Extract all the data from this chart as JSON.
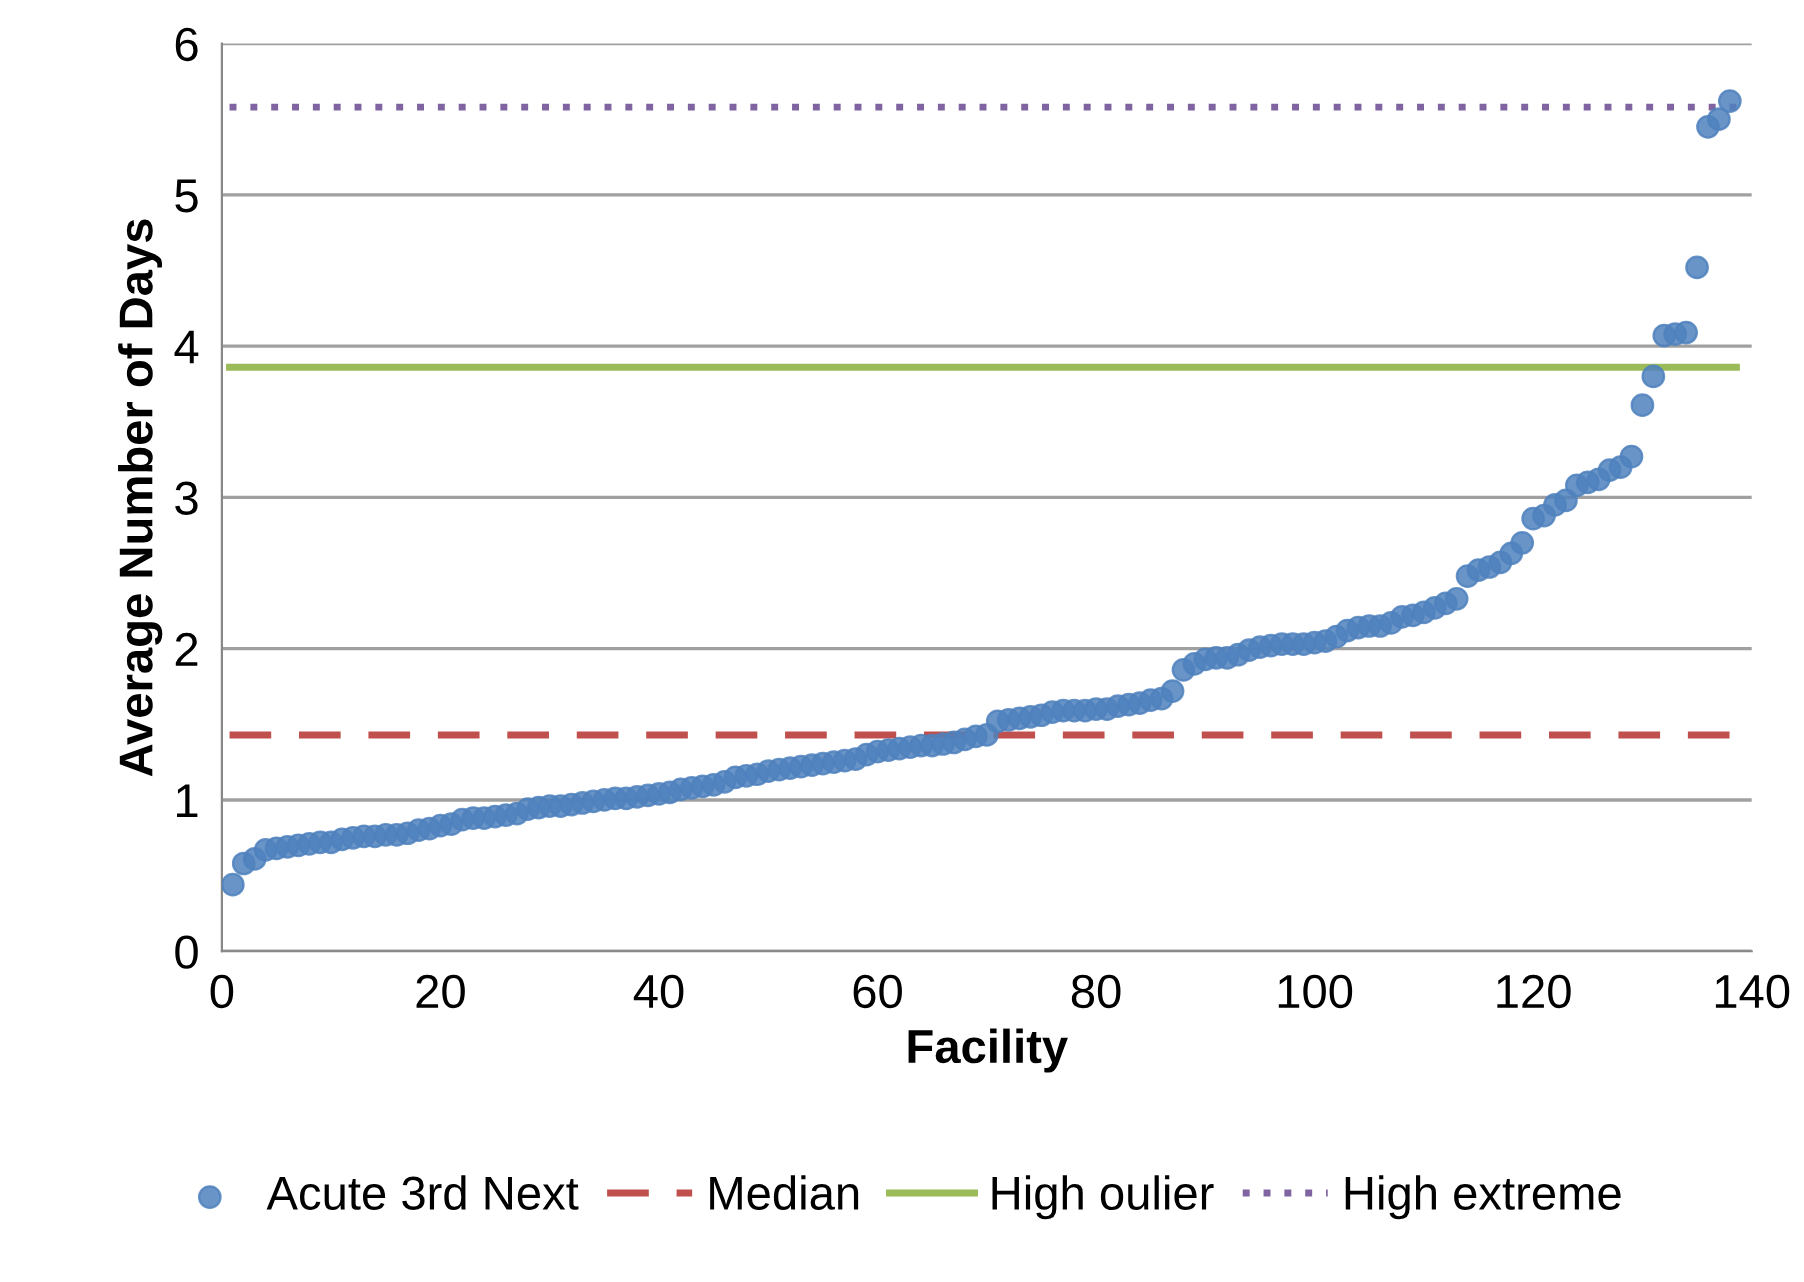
{
  "chart_data": {
    "type": "scatter",
    "xlabel": "Facility",
    "ylabel": "Average Number of Days",
    "xlim": [
      0,
      140
    ],
    "xticks": [
      0,
      20,
      40,
      60,
      80,
      100,
      120,
      140
    ],
    "ylim": [
      0,
      6
    ],
    "yticks": [
      0,
      1,
      2,
      3,
      4,
      5,
      6
    ],
    "grid": "y",
    "legend": "bottom",
    "x": [
      1,
      2,
      3,
      4,
      5,
      6,
      7,
      8,
      9,
      10,
      11,
      12,
      13,
      14,
      15,
      16,
      17,
      18,
      19,
      20,
      21,
      22,
      23,
      24,
      25,
      26,
      27,
      28,
      29,
      30,
      31,
      32,
      33,
      34,
      35,
      36,
      37,
      38,
      39,
      40,
      41,
      42,
      43,
      44,
      45,
      46,
      47,
      48,
      49,
      50,
      51,
      52,
      53,
      54,
      55,
      56,
      57,
      58,
      59,
      60,
      61,
      62,
      63,
      64,
      65,
      66,
      67,
      68,
      69,
      70,
      71,
      72,
      73,
      74,
      75,
      76,
      77,
      78,
      79,
      80,
      81,
      82,
      83,
      84,
      85,
      86,
      87,
      88,
      89,
      90,
      91,
      92,
      93,
      94,
      95,
      96,
      97,
      98,
      99,
      100,
      101,
      102,
      103,
      104,
      105,
      106,
      107,
      108,
      109,
      110,
      111,
      112,
      113,
      114,
      115,
      116,
      117,
      118,
      119,
      120,
      121,
      122,
      123,
      124,
      125,
      126,
      127,
      128,
      129,
      130,
      131,
      132,
      133,
      134,
      135,
      136,
      137,
      138
    ],
    "series": [
      {
        "name": "Acute 3rd Next",
        "marker": "circle",
        "color": "#4f81bd",
        "values": [
          0.44,
          0.58,
          0.61,
          0.67,
          0.68,
          0.69,
          0.7,
          0.71,
          0.72,
          0.72,
          0.74,
          0.75,
          0.76,
          0.76,
          0.77,
          0.77,
          0.78,
          0.8,
          0.81,
          0.83,
          0.84,
          0.87,
          0.88,
          0.88,
          0.89,
          0.9,
          0.91,
          0.94,
          0.95,
          0.96,
          0.96,
          0.97,
          0.98,
          0.99,
          1.0,
          1.01,
          1.01,
          1.02,
          1.03,
          1.04,
          1.05,
          1.07,
          1.08,
          1.09,
          1.1,
          1.12,
          1.15,
          1.16,
          1.17,
          1.19,
          1.2,
          1.21,
          1.22,
          1.23,
          1.24,
          1.25,
          1.26,
          1.27,
          1.3,
          1.32,
          1.33,
          1.34,
          1.35,
          1.36,
          1.36,
          1.37,
          1.38,
          1.4,
          1.42,
          1.43,
          1.52,
          1.53,
          1.54,
          1.55,
          1.56,
          1.58,
          1.59,
          1.59,
          1.59,
          1.6,
          1.6,
          1.62,
          1.63,
          1.64,
          1.66,
          1.67,
          1.72,
          1.86,
          1.9,
          1.93,
          1.94,
          1.94,
          1.96,
          1.99,
          2.01,
          2.02,
          2.03,
          2.03,
          2.03,
          2.04,
          2.05,
          2.08,
          2.12,
          2.14,
          2.15,
          2.15,
          2.17,
          2.21,
          2.22,
          2.24,
          2.27,
          2.3,
          2.33,
          2.48,
          2.52,
          2.54,
          2.57,
          2.63,
          2.7,
          2.86,
          2.88,
          2.95,
          2.98,
          3.08,
          3.1,
          3.12,
          3.18,
          3.2,
          3.27,
          3.61,
          3.8,
          4.07,
          4.08,
          4.09,
          4.52,
          5.45,
          5.5,
          5.62
        ]
      }
    ],
    "ref_lines": [
      {
        "axis": "y",
        "value": 1.43,
        "label": "Median",
        "line_style": "dashed",
        "color": "#c0504d"
      },
      {
        "axis": "y",
        "value": 3.86,
        "label": "High oulier",
        "line_style": "solid",
        "color": "#9bbb59"
      },
      {
        "axis": "y",
        "value": 5.58,
        "label": "High extreme",
        "line_style": "dotted",
        "color": "#8064a2"
      }
    ]
  }
}
